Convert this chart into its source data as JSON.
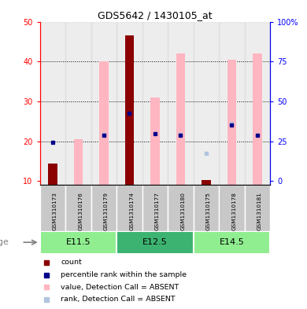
{
  "title": "GDS5642 / 1430105_at",
  "samples": [
    "GSM1310173",
    "GSM1310176",
    "GSM1310179",
    "GSM1310174",
    "GSM1310177",
    "GSM1310180",
    "GSM1310175",
    "GSM1310178",
    "GSM1310181"
  ],
  "age_groups": [
    {
      "label": "E11.5",
      "start": 0,
      "end": 3,
      "color": "#90EE90"
    },
    {
      "label": "E12.5",
      "start": 3,
      "end": 6,
      "color": "#3CB371"
    },
    {
      "label": "E14.5",
      "start": 6,
      "end": 9,
      "color": "#90EE90"
    }
  ],
  "ylim": [
    9,
    50
  ],
  "y_left_ticks": [
    10,
    20,
    30,
    40,
    50
  ],
  "right_tick_positions": [
    10,
    20,
    30,
    40,
    50
  ],
  "right_tick_labels": [
    "0",
    "25",
    "50",
    "75",
    "100%"
  ],
  "dotted_lines": [
    20,
    30,
    40
  ],
  "pink_bars": {
    "top": [
      null,
      20.5,
      40.0,
      null,
      31.0,
      42.0,
      null,
      40.5,
      42.0
    ],
    "bottom": [
      null,
      9.0,
      9.0,
      null,
      9.0,
      9.0,
      null,
      9.0,
      9.0
    ]
  },
  "red_bars": {
    "top": [
      14.5,
      null,
      null,
      46.5,
      null,
      null,
      10.2,
      null,
      null
    ],
    "bottom": [
      9.0,
      null,
      null,
      9.0,
      null,
      null,
      9.0,
      null,
      null
    ]
  },
  "blue_squares": {
    "y": [
      19.7,
      null,
      21.5,
      27.0,
      22.0,
      21.5,
      null,
      24.0,
      21.5
    ],
    "present": [
      true,
      false,
      true,
      true,
      true,
      true,
      false,
      true,
      true
    ]
  },
  "light_blue_squares": {
    "y": [
      null,
      null,
      21.8,
      null,
      null,
      21.8,
      17.0,
      24.5,
      null
    ],
    "present": [
      false,
      false,
      true,
      false,
      false,
      true,
      true,
      true,
      false
    ]
  },
  "legend": [
    {
      "color": "#8B0000",
      "label": "count"
    },
    {
      "color": "#00008B",
      "label": "percentile rank within the sample"
    },
    {
      "color": "#FFB6C1",
      "label": "value, Detection Call = ABSENT"
    },
    {
      "color": "#B0C4DE",
      "label": "rank, Detection Call = ABSENT"
    }
  ]
}
